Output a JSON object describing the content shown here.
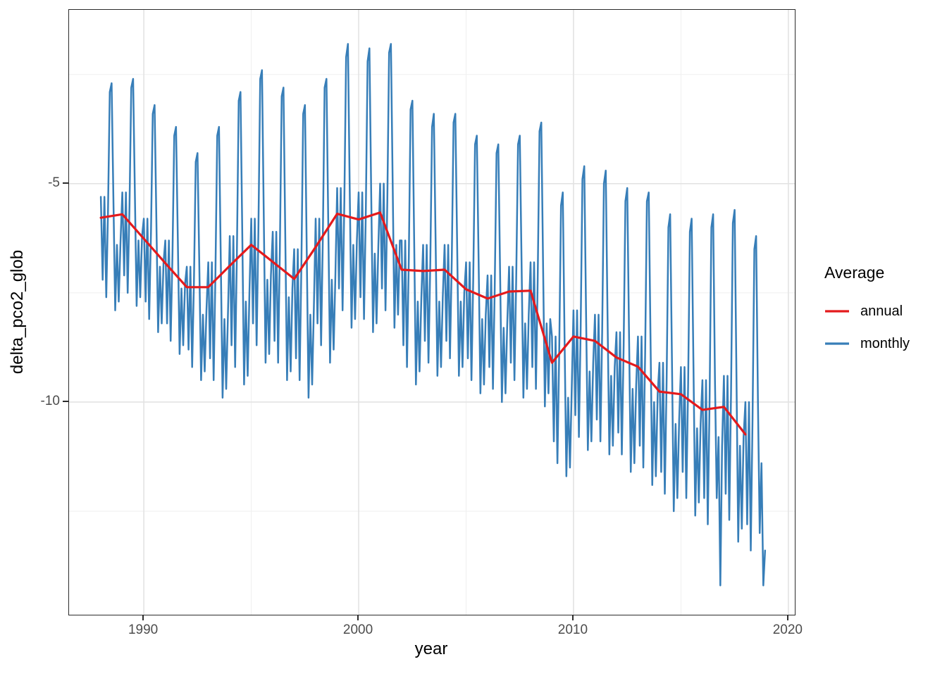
{
  "chart_data": {
    "type": "line",
    "title": "",
    "xlabel": "year",
    "ylabel": "delta_pco2_glob",
    "xlim": [
      1986.52,
      2020.3
    ],
    "ylim": [
      -14.87,
      -1.02
    ],
    "grid": true,
    "grid_major_color": "#e3e3e3",
    "grid_minor_color": "#efefef",
    "x_major_ticks": [
      1990,
      2000,
      2010,
      2020
    ],
    "x_tick_labels": [
      "1990",
      "2000",
      "2010",
      "2020"
    ],
    "x_minor_ticks": [
      1995,
      2005,
      2015
    ],
    "y_major_ticks": [
      -5,
      -10
    ],
    "y_tick_labels": [
      "-5",
      "-10"
    ],
    "y_minor_ticks": [
      -2.5,
      -7.5,
      -12.5
    ],
    "legend": {
      "title": "Average",
      "position": "right",
      "items": [
        {
          "label": "annual",
          "color": "#E41A1C"
        },
        {
          "label": "monthly",
          "color": "#377EB8"
        }
      ]
    },
    "series": [
      {
        "name": "annual",
        "color": "#E41A1C",
        "stroke_width": 3.2,
        "x_start": 1988,
        "x_step": 1,
        "years": [
          1988,
          1989,
          1990,
          1991,
          1992,
          1993,
          1994,
          1995,
          1996,
          1997,
          1998,
          1999,
          2000,
          2001,
          2002,
          2003,
          2004,
          2005,
          2006,
          2007,
          2008,
          2009,
          2010,
          2011,
          2012,
          2013,
          2014,
          2015,
          2016,
          2017,
          2018
        ],
        "values": [
          -5.78,
          -5.7,
          -6.26,
          -6.82,
          -7.37,
          -7.37,
          -6.88,
          -6.4,
          -6.79,
          -7.18,
          -6.45,
          -5.69,
          -5.82,
          -5.66,
          -6.97,
          -7.0,
          -6.97,
          -7.42,
          -7.63,
          -7.47,
          -7.45,
          -9.1,
          -8.5,
          -8.6,
          -8.98,
          -9.19,
          -9.76,
          -9.82,
          -10.18,
          -10.11,
          -10.74
        ]
      },
      {
        "name": "monthly",
        "color": "#377EB8",
        "stroke_width": 2.5,
        "x_start": 1988,
        "x_step": 0.0833333,
        "values_by_year": [
          [
            -5.3,
            -7.2,
            -5.3,
            -7.6,
            -5.6,
            -2.9,
            -2.7,
            -5.3,
            -7.9,
            -6.4,
            -7.7,
            -6.3
          ],
          [
            -5.2,
            -7.1,
            -5.2,
            -7.5,
            -5.5,
            -2.8,
            -2.6,
            -5.2,
            -7.8,
            -6.3,
            -7.6,
            -6.2
          ],
          [
            -5.8,
            -7.7,
            -5.8,
            -8.1,
            -6.1,
            -3.4,
            -3.2,
            -5.8,
            -8.4,
            -6.9,
            -8.2,
            -6.8
          ],
          [
            -6.3,
            -8.2,
            -6.3,
            -8.6,
            -6.6,
            -3.9,
            -3.7,
            -6.3,
            -8.9,
            -7.4,
            -8.7,
            -7.3
          ],
          [
            -6.9,
            -8.8,
            -6.9,
            -9.2,
            -7.2,
            -4.5,
            -4.3,
            -6.9,
            -9.5,
            -8.0,
            -9.3,
            -7.9
          ],
          [
            -6.8,
            -9.0,
            -6.8,
            -9.5,
            -7.1,
            -3.9,
            -3.7,
            -6.8,
            -9.9,
            -8.1,
            -9.7,
            -8.0
          ],
          [
            -6.2,
            -8.7,
            -6.2,
            -9.2,
            -6.6,
            -3.1,
            -2.9,
            -6.2,
            -9.6,
            -7.7,
            -9.4,
            -7.5
          ],
          [
            -5.8,
            -8.2,
            -5.8,
            -8.7,
            -6.1,
            -2.6,
            -2.4,
            -5.8,
            -9.1,
            -7.2,
            -8.9,
            -7.1
          ],
          [
            -6.1,
            -8.6,
            -6.1,
            -9.1,
            -6.5,
            -3.0,
            -2.8,
            -6.1,
            -9.5,
            -7.6,
            -9.3,
            -7.4
          ],
          [
            -6.5,
            -9.0,
            -6.5,
            -9.5,
            -6.9,
            -3.4,
            -3.2,
            -6.5,
            -9.9,
            -8.0,
            -9.6,
            -7.8
          ],
          [
            -5.8,
            -8.2,
            -5.8,
            -8.7,
            -6.2,
            -2.8,
            -2.6,
            -5.8,
            -9.1,
            -7.2,
            -8.8,
            -7.1
          ],
          [
            -5.1,
            -7.4,
            -5.1,
            -7.9,
            -5.4,
            -2.1,
            -1.8,
            -5.1,
            -8.3,
            -6.4,
            -8.1,
            -6.3
          ],
          [
            -5.2,
            -7.6,
            -5.2,
            -8.1,
            -5.6,
            -2.2,
            -1.9,
            -5.2,
            -8.4,
            -6.6,
            -8.2,
            -6.4
          ],
          [
            -5.0,
            -7.4,
            -5.0,
            -7.9,
            -5.4,
            -2.0,
            -1.8,
            -5.0,
            -8.3,
            -6.4,
            -8.0,
            -6.3
          ],
          [
            -6.3,
            -8.7,
            -6.3,
            -9.2,
            -6.7,
            -3.3,
            -3.1,
            -6.3,
            -9.6,
            -7.7,
            -9.3,
            -7.6
          ],
          [
            -6.4,
            -8.6,
            -6.4,
            -9.1,
            -6.8,
            -3.7,
            -3.4,
            -6.4,
            -9.4,
            -7.7,
            -9.2,
            -7.6
          ],
          [
            -6.4,
            -8.6,
            -6.4,
            -9.0,
            -6.7,
            -3.6,
            -3.4,
            -6.4,
            -9.4,
            -7.7,
            -9.2,
            -7.5
          ],
          [
            -6.8,
            -9.0,
            -6.8,
            -9.5,
            -7.2,
            -4.1,
            -3.9,
            -6.8,
            -9.8,
            -8.1,
            -9.6,
            -8.0
          ],
          [
            -7.1,
            -9.2,
            -7.1,
            -9.7,
            -7.4,
            -4.3,
            -4.1,
            -7.1,
            -10.0,
            -8.3,
            -9.8,
            -8.2
          ],
          [
            -6.9,
            -9.1,
            -6.9,
            -9.5,
            -7.2,
            -4.1,
            -3.9,
            -6.9,
            -9.9,
            -8.2,
            -9.7,
            -8.0
          ],
          [
            -6.8,
            -9.2,
            -6.8,
            -9.7,
            -7.2,
            -3.8,
            -3.6,
            -6.8,
            -10.1,
            -8.2,
            -9.8,
            -8.1
          ],
          [
            -8.5,
            -10.9,
            -8.5,
            -11.4,
            -8.9,
            -5.5,
            -5.2,
            -8.5,
            -11.7,
            -9.9,
            -11.5,
            -9.7
          ],
          [
            -7.9,
            -10.3,
            -7.9,
            -10.8,
            -8.3,
            -4.9,
            -4.6,
            -7.9,
            -11.1,
            -9.3,
            -10.9,
            -9.1
          ],
          [
            -8.0,
            -10.4,
            -8.0,
            -10.9,
            -8.4,
            -5.0,
            -4.7,
            -8.0,
            -11.2,
            -9.4,
            -11.0,
            -9.2
          ],
          [
            -8.4,
            -10.7,
            -8.4,
            -11.2,
            -8.7,
            -5.4,
            -5.1,
            -8.4,
            -11.6,
            -9.7,
            -11.4,
            -9.6
          ],
          [
            -8.5,
            -11.0,
            -8.5,
            -11.5,
            -8.9,
            -5.4,
            -5.2,
            -8.5,
            -11.9,
            -10.0,
            -11.7,
            -9.8
          ],
          [
            -9.1,
            -11.6,
            -9.1,
            -12.1,
            -9.5,
            -6.0,
            -5.7,
            -9.1,
            -12.5,
            -10.5,
            -12.2,
            -10.4
          ],
          [
            -9.2,
            -11.6,
            -9.2,
            -12.2,
            -9.6,
            -6.1,
            -5.8,
            -9.2,
            -12.6,
            -10.6,
            -12.3,
            -10.5
          ],
          [
            -9.5,
            -12.2,
            -9.5,
            -12.8,
            -9.9,
            -6.0,
            -5.7,
            -9.5,
            -12.2,
            -10.8,
            -14.2,
            -11.0
          ],
          [
            -9.4,
            -12.1,
            -9.4,
            -12.7,
            -9.8,
            -5.9,
            -5.6,
            -9.4,
            -13.2,
            -11.0,
            -12.9,
            -10.8
          ],
          [
            -10.0,
            -12.8,
            -10.0,
            -13.4,
            -10.4,
            -6.5,
            -6.2,
            -10.0,
            -13.0,
            -11.4,
            -14.2,
            -13.4
          ]
        ]
      }
    ]
  }
}
